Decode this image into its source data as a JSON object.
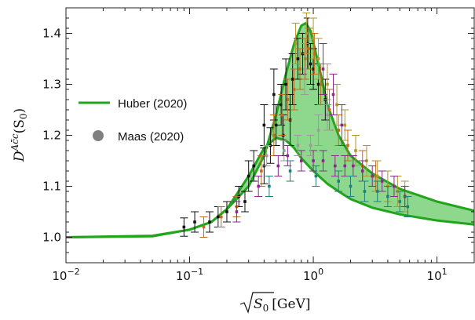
{
  "chart_data": {
    "type": "scatter",
    "x_scale": "log",
    "xlim": [
      0.01,
      20
    ],
    "ylim": [
      0.95,
      1.45
    ],
    "x_ticks": [
      {
        "value": 0.01,
        "base": "10",
        "exp": "−2"
      },
      {
        "value": 0.1,
        "base": "10",
        "exp": "−1"
      },
      {
        "value": 1,
        "base": "10",
        "exp": "0"
      },
      {
        "value": 10,
        "base": "10",
        "exp": "1"
      }
    ],
    "y_ticks": [
      {
        "value": 1.0,
        "label": "1.0"
      },
      {
        "value": 1.1,
        "label": "1.1"
      },
      {
        "value": 1.2,
        "label": "1.2"
      },
      {
        "value": 1.3,
        "label": "1.3"
      },
      {
        "value": 1.4,
        "label": "1.4"
      }
    ],
    "xlabel": {
      "sqrt_arg": "S",
      "sub": "0",
      "unit": "[GeV]"
    },
    "ylabel": {
      "main": "D",
      "sup": "Ac̄c",
      "arg": "(S",
      "sub": "0",
      "close": ")"
    },
    "colors": {
      "band_fill": "#8ed88e",
      "band_line": "#22a51c",
      "marker": "#808080",
      "frame": "#222222"
    },
    "legend": [
      {
        "kind": "line",
        "label": "Huber (2020)"
      },
      {
        "kind": "marker",
        "label": "Maas (2020)"
      }
    ],
    "band": {
      "upper": [
        [
          0.01,
          1.0
        ],
        [
          0.05,
          1.003
        ],
        [
          0.1,
          1.015
        ],
        [
          0.15,
          1.03
        ],
        [
          0.2,
          1.055
        ],
        [
          0.3,
          1.1
        ],
        [
          0.4,
          1.16
        ],
        [
          0.5,
          1.24
        ],
        [
          0.6,
          1.32
        ],
        [
          0.7,
          1.38
        ],
        [
          0.8,
          1.415
        ],
        [
          0.87,
          1.42
        ],
        [
          0.95,
          1.405
        ],
        [
          1.1,
          1.34
        ],
        [
          1.3,
          1.26
        ],
        [
          1.6,
          1.2
        ],
        [
          2.0,
          1.16
        ],
        [
          3.0,
          1.125
        ],
        [
          5.0,
          1.095
        ],
        [
          10.0,
          1.07
        ],
        [
          20.0,
          1.052
        ]
      ],
      "lower": [
        [
          0.01,
          1.0
        ],
        [
          0.05,
          1.002
        ],
        [
          0.1,
          1.015
        ],
        [
          0.15,
          1.03
        ],
        [
          0.2,
          1.055
        ],
        [
          0.3,
          1.12
        ],
        [
          0.4,
          1.175
        ],
        [
          0.5,
          1.195
        ],
        [
          0.6,
          1.19
        ],
        [
          0.7,
          1.175
        ],
        [
          0.8,
          1.155
        ],
        [
          1.0,
          1.13
        ],
        [
          1.3,
          1.105
        ],
        [
          1.6,
          1.09
        ],
        [
          2.0,
          1.075
        ],
        [
          3.0,
          1.058
        ],
        [
          5.0,
          1.045
        ],
        [
          10.0,
          1.033
        ],
        [
          20.0,
          1.025
        ]
      ]
    },
    "series": [
      {
        "color": "#111111",
        "points": [
          [
            0.09,
            1.02,
            0.018
          ],
          [
            0.11,
            1.03,
            0.02
          ],
          [
            0.145,
            1.03,
            0.02
          ],
          [
            0.17,
            1.04,
            0.02
          ],
          [
            0.2,
            1.05,
            0.02
          ],
          [
            0.25,
            1.08,
            0.02
          ],
          [
            0.3,
            1.12,
            0.03
          ],
          [
            0.33,
            1.14,
            0.03
          ],
          [
            0.4,
            1.14,
            0.035
          ],
          [
            0.45,
            1.18,
            0.035
          ],
          [
            0.5,
            1.22,
            0.04
          ],
          [
            0.55,
            1.26,
            0.04
          ],
          [
            0.6,
            1.3,
            0.05
          ],
          [
            0.68,
            1.31,
            0.05
          ],
          [
            0.75,
            1.35,
            0.04
          ],
          [
            0.82,
            1.36,
            0.04
          ],
          [
            0.9,
            1.38,
            0.05
          ],
          [
            0.95,
            1.34,
            0.04
          ],
          [
            1.0,
            1.33,
            0.04
          ],
          [
            1.1,
            1.3,
            0.04
          ],
          [
            1.25,
            1.27,
            0.04
          ],
          [
            0.48,
            1.28,
            0.05
          ],
          [
            0.57,
            1.2,
            0.04
          ],
          [
            0.65,
            1.23,
            0.05
          ],
          [
            0.4,
            1.22,
            0.04
          ],
          [
            0.28,
            1.07,
            0.02
          ]
        ]
      },
      {
        "color": "#c06a1a",
        "points": [
          [
            0.13,
            1.02,
            0.02
          ],
          [
            0.18,
            1.04,
            0.02
          ],
          [
            0.24,
            1.06,
            0.02
          ],
          [
            0.38,
            1.13,
            0.03
          ],
          [
            0.48,
            1.2,
            0.04
          ],
          [
            0.56,
            1.24,
            0.04
          ],
          [
            0.62,
            1.27,
            0.04
          ],
          [
            0.7,
            1.29,
            0.04
          ],
          [
            0.78,
            1.33,
            0.04
          ],
          [
            0.86,
            1.35,
            0.04
          ],
          [
            0.92,
            1.37,
            0.04
          ],
          [
            1.02,
            1.36,
            0.04
          ],
          [
            1.15,
            1.3,
            0.04
          ],
          [
            1.35,
            1.25,
            0.04
          ],
          [
            1.6,
            1.21,
            0.03
          ],
          [
            1.9,
            1.18,
            0.03
          ],
          [
            2.5,
            1.14,
            0.03
          ],
          [
            3.2,
            1.12,
            0.03
          ]
        ]
      },
      {
        "color": "#b0962a",
        "points": [
          [
            0.72,
            1.38,
            0.04
          ],
          [
            0.88,
            1.4,
            0.04
          ],
          [
            1.0,
            1.39,
            0.04
          ],
          [
            1.1,
            1.35,
            0.04
          ],
          [
            1.3,
            1.3,
            0.04
          ],
          [
            1.55,
            1.26,
            0.04
          ],
          [
            1.8,
            1.22,
            0.03
          ],
          [
            2.2,
            1.17,
            0.03
          ],
          [
            2.7,
            1.15,
            0.03
          ],
          [
            3.3,
            1.12,
            0.03
          ],
          [
            4.0,
            1.1,
            0.03
          ],
          [
            4.8,
            1.09,
            0.03
          ],
          [
            5.5,
            1.08,
            0.03
          ]
        ]
      },
      {
        "color": "#882b88",
        "points": [
          [
            0.24,
            1.05,
            0.02
          ],
          [
            0.36,
            1.1,
            0.02
          ],
          [
            0.52,
            1.14,
            0.02
          ],
          [
            0.62,
            1.16,
            0.02
          ],
          [
            0.8,
            1.15,
            0.02
          ],
          [
            1.0,
            1.15,
            0.02
          ],
          [
            1.2,
            1.15,
            0.02
          ],
          [
            1.5,
            1.14,
            0.02
          ],
          [
            1.8,
            1.14,
            0.02
          ],
          [
            2.1,
            1.14,
            0.02
          ],
          [
            2.5,
            1.13,
            0.02
          ],
          [
            3.0,
            1.12,
            0.02
          ],
          [
            3.6,
            1.11,
            0.02
          ],
          [
            4.5,
            1.1,
            0.02
          ],
          [
            5.5,
            1.08,
            0.02
          ],
          [
            1.2,
            1.33,
            0.05
          ],
          [
            1.45,
            1.28,
            0.04
          ],
          [
            1.7,
            1.22,
            0.04
          ]
        ]
      },
      {
        "color": "#9a9a9a",
        "points": [
          [
            0.42,
            1.16,
            0.02
          ],
          [
            0.58,
            1.17,
            0.02
          ],
          [
            0.75,
            1.18,
            0.02
          ],
          [
            0.95,
            1.18,
            0.02
          ],
          [
            1.1,
            1.21,
            0.03
          ],
          [
            1.3,
            1.24,
            0.03
          ],
          [
            0.85,
            1.33,
            0.05
          ]
        ]
      },
      {
        "color": "#1f7f7a",
        "points": [
          [
            0.44,
            1.1,
            0.02
          ],
          [
            0.65,
            1.13,
            0.02
          ],
          [
            1.05,
            1.12,
            0.02
          ],
          [
            1.6,
            1.11,
            0.02
          ],
          [
            2.0,
            1.1,
            0.02
          ],
          [
            2.6,
            1.09,
            0.02
          ],
          [
            3.3,
            1.09,
            0.02
          ],
          [
            4.0,
            1.08,
            0.02
          ],
          [
            5.0,
            1.07,
            0.02
          ],
          [
            5.8,
            1.06,
            0.02
          ]
        ]
      }
    ]
  }
}
